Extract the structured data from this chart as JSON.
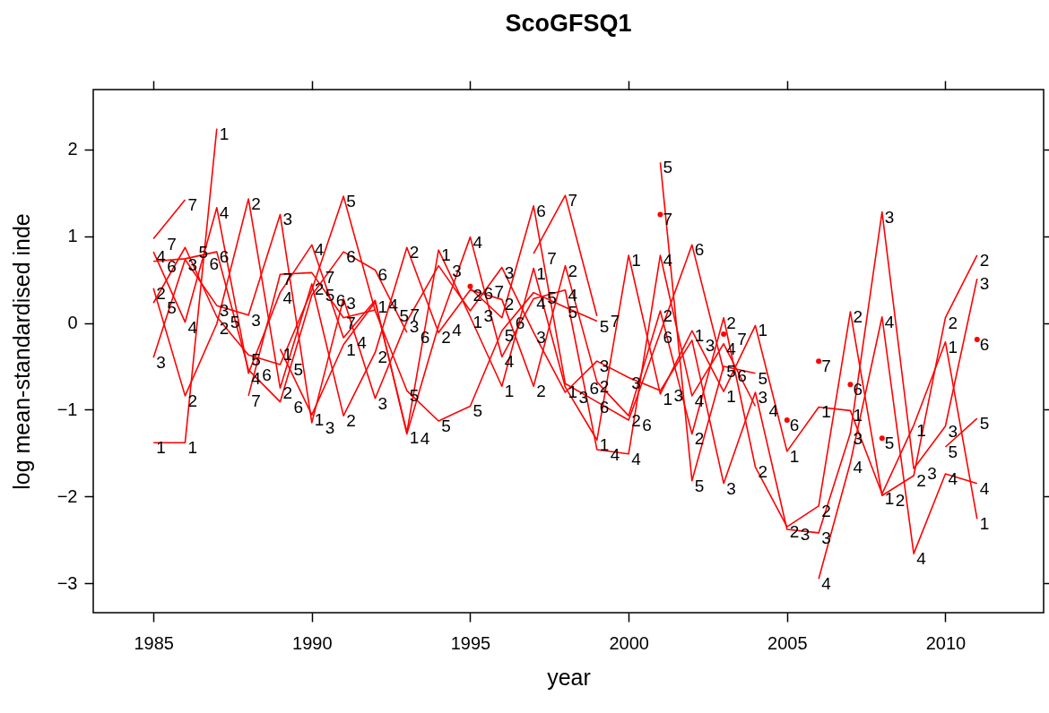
{
  "chart_data": {
    "type": "line",
    "title": "ScoGFSQ1",
    "xlabel": "year",
    "ylabel": "log mean-standardised inde",
    "x": [
      1985,
      1986,
      1987,
      1988,
      1989,
      1990,
      1991,
      1992,
      1993,
      1994,
      1995,
      1996,
      1997,
      1998,
      1999,
      2000,
      2001,
      2002,
      2003,
      2004,
      2005,
      2006,
      2007,
      2008,
      2009,
      2010,
      2011
    ],
    "series": [
      {
        "name": "1",
        "color": "#ff0000",
        "values": [
          -1.38,
          -1.38,
          2.24,
          null,
          -0.3,
          -1.06,
          -0.25,
          0.24,
          -1.26,
          0.84,
          0.07,
          -0.73,
          0.63,
          -0.74,
          -1.35,
          0.78,
          -0.82,
          -0.09,
          -0.79,
          -0.03,
          -1.48,
          -0.97,
          -1.01,
          -1.97,
          -1.18,
          -0.22,
          -2.26
        ]
      },
      {
        "name": "2",
        "color": "#ff0000",
        "values": [
          0.4,
          -0.84,
          -0.01,
          1.43,
          -0.75,
          0.45,
          -1.07,
          -0.34,
          0.87,
          -0.11,
          0.38,
          0.27,
          -0.73,
          0.66,
          -0.68,
          -1.07,
          0.14,
          -1.28,
          0.06,
          -1.66,
          -2.35,
          -2.11,
          0.13,
          -1.99,
          -1.76,
          0.06,
          0.78
        ]
      },
      {
        "name": "3",
        "color": "#ff0000",
        "values": [
          -0.4,
          0.73,
          0.2,
          0.09,
          1.25,
          -1.15,
          0.28,
          -0.87,
          0.02,
          0.66,
          0.14,
          0.64,
          -0.11,
          -0.8,
          -0.44,
          -0.63,
          -0.78,
          -0.2,
          -1.85,
          -0.8,
          -2.38,
          -2.42,
          -1.27,
          1.28,
          -1.68,
          -1.19,
          0.51
        ]
      },
      {
        "name": "4",
        "color": "#ff0000",
        "values": [
          0.82,
          0.01,
          1.33,
          -0.58,
          0.35,
          0.9,
          -0.17,
          0.26,
          -1.28,
          -0.03,
          0.99,
          -0.39,
          0.28,
          0.38,
          -1.46,
          -1.51,
          0.78,
          -0.84,
          -0.24,
          -0.96,
          null,
          -2.95,
          -1.61,
          0.07,
          -2.66,
          -1.74,
          -1.85
        ]
      },
      {
        "name": "5",
        "color": "#ff0000",
        "values": [
          0.23,
          0.87,
          0.07,
          -0.37,
          -0.48,
          0.38,
          1.46,
          0.14,
          -0.78,
          -1.13,
          -0.96,
          -0.09,
          0.35,
          0.18,
          0.02,
          null,
          1.85,
          -1.82,
          -0.5,
          -0.58,
          null,
          null,
          null,
          -1.33,
          null,
          -1.43,
          -1.1
        ]
      },
      {
        "name": "6",
        "color": "#ff0000",
        "values": [
          0.71,
          0.74,
          0.82,
          -0.54,
          -0.91,
          0.32,
          0.82,
          0.61,
          -0.11,
          null,
          0.4,
          0.06,
          1.35,
          -0.7,
          -0.91,
          -1.12,
          -0.11,
          0.9,
          -0.55,
          null,
          -1.12,
          null,
          -0.71,
          null,
          null,
          null,
          -0.19
        ]
      },
      {
        "name": "7",
        "color": "#ff0000",
        "values": [
          0.97,
          1.42,
          null,
          -0.84,
          0.56,
          0.58,
          0.06,
          0.15,
          null,
          null,
          0.42,
          null,
          0.8,
          1.47,
          0.08,
          null,
          1.25,
          null,
          -0.13,
          null,
          null,
          -0.44,
          null,
          null,
          null,
          null,
          null
        ]
      }
    ],
    "xlim": [
      1983.1,
      2013.1
    ],
    "ylim": [
      -3.34,
      2.69
    ],
    "xticks": [
      1985,
      1990,
      1995,
      2000,
      2005,
      2010
    ],
    "yticks": [
      -3,
      -2,
      -1,
      0,
      1,
      2
    ]
  }
}
